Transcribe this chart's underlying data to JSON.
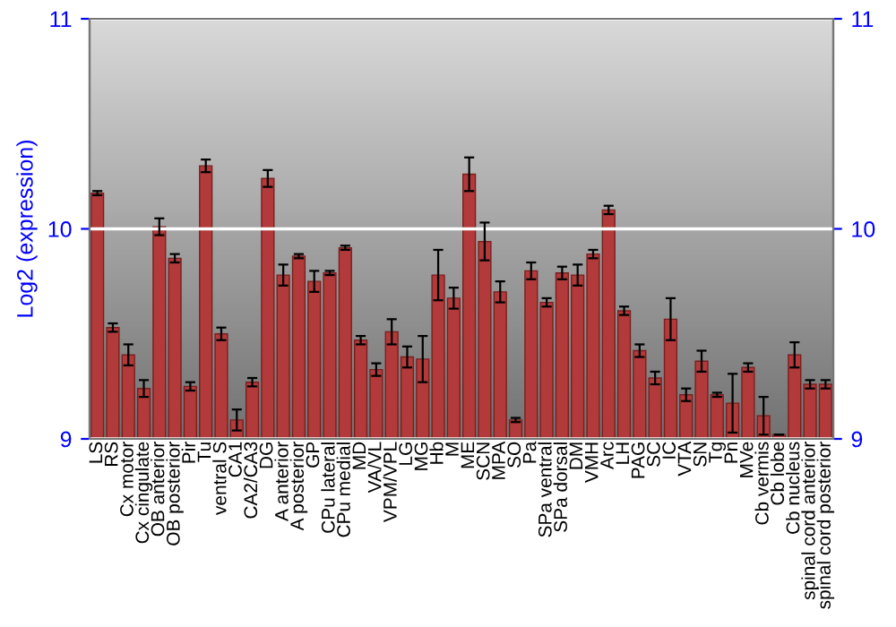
{
  "chart_data": {
    "type": "bar",
    "ylabel": "Log2 (expression)",
    "categories": [
      "LS",
      "RS",
      "Cx motor",
      "Cx cingulate",
      "OB anterior",
      "OB posterior",
      "Pir",
      "Tu",
      "ventral S",
      "CA1",
      "CA2/CA3",
      "DG",
      "A anterior",
      "A posterior",
      "GP",
      "CPu lateral",
      "CPu medial",
      "MD",
      "VA/VL",
      "VPM/VPL",
      "LG",
      "MG",
      "Hb",
      "M",
      "ME",
      "SCN",
      "MPA",
      "SO",
      "Pa",
      "SPa ventral",
      "SPa dorsal",
      "DM",
      "VMH",
      "Arc",
      "LH",
      "PAG",
      "SC",
      "IC",
      "VTA",
      "SN",
      "Tg",
      "Pn",
      "MVe",
      "Cb vermis",
      "Cb lobe",
      "Cb nucleus",
      "spinal cord anterior",
      "spinal cord posterior"
    ],
    "values": [
      10.17,
      9.53,
      9.4,
      9.24,
      10.01,
      9.86,
      9.25,
      10.3,
      9.5,
      9.09,
      9.27,
      10.24,
      9.78,
      9.87,
      9.75,
      9.79,
      9.91,
      9.47,
      9.33,
      9.51,
      9.39,
      9.38,
      9.78,
      9.67,
      10.26,
      9.94,
      9.7,
      9.09,
      9.8,
      9.65,
      9.79,
      9.78,
      9.88,
      10.09,
      9.61,
      9.42,
      9.29,
      9.57,
      9.21,
      9.37,
      9.21,
      9.17,
      9.34,
      9.11,
      9.02,
      9.4,
      9.26,
      9.26
    ],
    "errors": [
      0.01,
      0.02,
      0.05,
      0.04,
      0.04,
      0.02,
      0.02,
      0.03,
      0.03,
      0.05,
      0.02,
      0.04,
      0.05,
      0.01,
      0.05,
      0.01,
      0.01,
      0.02,
      0.03,
      0.06,
      0.05,
      0.11,
      0.12,
      0.05,
      0.08,
      0.09,
      0.05,
      0.01,
      0.04,
      0.02,
      0.03,
      0.05,
      0.02,
      0.02,
      0.02,
      0.03,
      0.03,
      0.1,
      0.03,
      0.05,
      0.01,
      0.14,
      0.02,
      0.09,
      null,
      0.06,
      0.02,
      0.02
    ],
    "color": "#b23a3a",
    "ylim": [
      9,
      11
    ],
    "yticks": [
      9,
      10,
      11
    ],
    "y2lim": [
      9,
      11
    ],
    "y2ticks": [
      9,
      10,
      11
    ],
    "grid": "y"
  }
}
